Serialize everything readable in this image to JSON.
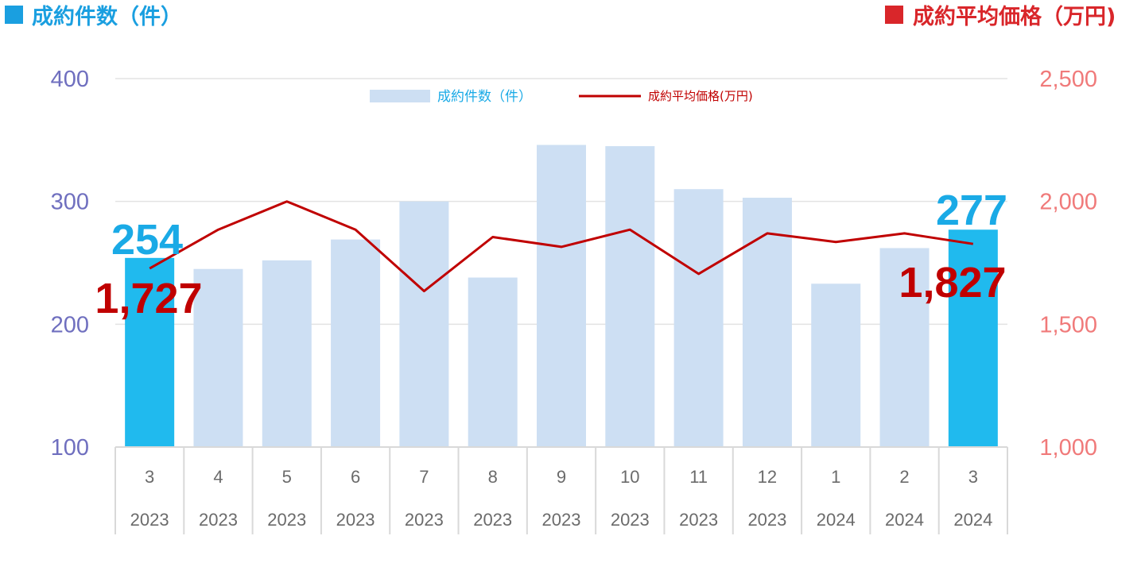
{
  "header": {
    "left_title": "成約件数（件）",
    "right_title": "成約平均価格（万円)"
  },
  "colors": {
    "bar": "#cddff3",
    "bar_highlight": "#20baee",
    "line": "#c00000",
    "left_axis": "#6f6fbf",
    "right_axis": "#f07a7a",
    "count_marker": "#1a9fe0",
    "price_marker": "#d9262a"
  },
  "chart_data": {
    "type": "bar",
    "categories": [
      "3",
      "4",
      "5",
      "6",
      "7",
      "8",
      "9",
      "10",
      "11",
      "12",
      "1",
      "2",
      "3"
    ],
    "years": [
      "2023",
      "2023",
      "2023",
      "2023",
      "2023",
      "2023",
      "2023",
      "2023",
      "2023",
      "2023",
      "2024",
      "2024",
      "2024"
    ],
    "series": [
      {
        "name": "成約件数（件）",
        "type": "bar",
        "axis": "left",
        "values": [
          254,
          245,
          252,
          269,
          300,
          238,
          346,
          345,
          310,
          303,
          233,
          262,
          277
        ],
        "highlight": [
          true,
          false,
          false,
          false,
          false,
          false,
          false,
          false,
          false,
          false,
          false,
          false,
          true
        ]
      },
      {
        "name": "成約平均価格(万円)",
        "type": "line",
        "axis": "right",
        "values": [
          1727,
          1885,
          2000,
          1885,
          1635,
          1855,
          1815,
          1885,
          1705,
          1870,
          1835,
          1870,
          1827
        ]
      }
    ],
    "left_axis": {
      "ylim": [
        100,
        400
      ],
      "ticks": [
        "100",
        "200",
        "300",
        "400"
      ]
    },
    "right_axis": {
      "ylim": [
        1000,
        2500
      ],
      "ticks": [
        "1,000",
        "1,500",
        "2,000",
        "2,500"
      ]
    },
    "callouts": {
      "first_count": "254",
      "first_price": "1,727",
      "last_count": "277",
      "last_price": "1,827"
    },
    "legend_position": "top-center",
    "grid": true
  }
}
